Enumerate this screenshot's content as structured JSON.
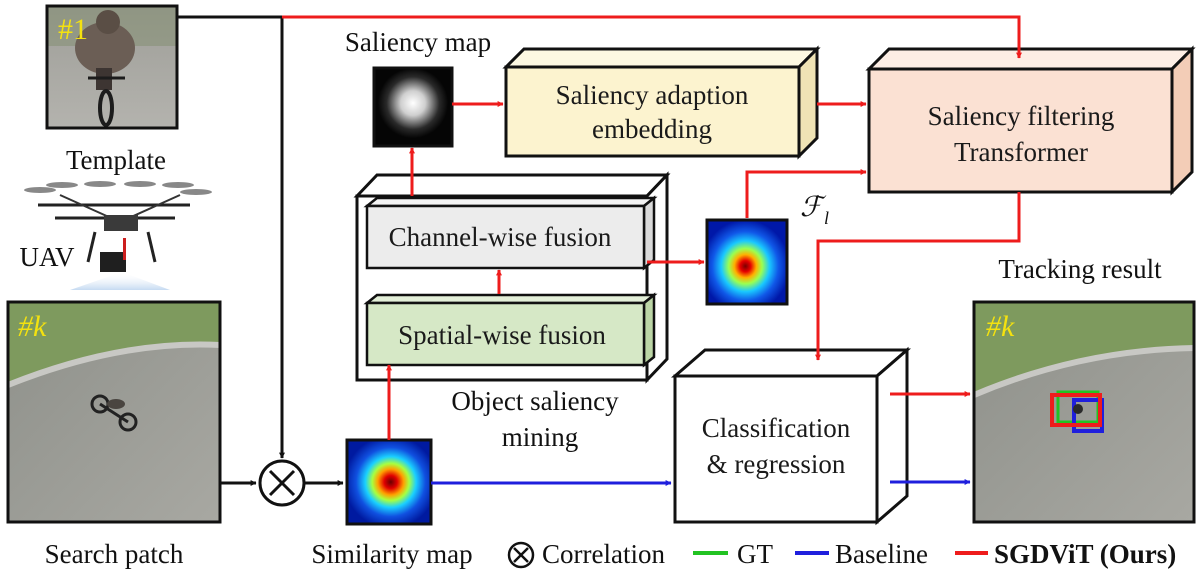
{
  "colors": {
    "red": "#ee1c1c",
    "blue": "#1f1fdd",
    "green": "#22c322",
    "black": "#111111",
    "yellow_box": "#fcf3cf",
    "pink_box": "#fbe1d3",
    "gray_box": "#ececec",
    "green_box": "#d6e8c6",
    "frame_tag": "#f4e20f"
  },
  "labels": {
    "template": "Template",
    "uav": "UAV",
    "search_patch": "Search patch",
    "saliency_map": "Saliency map",
    "similarity_map": "Similarity map",
    "tracking_result": "Tracking result",
    "object_saliency_line1": "Object saliency",
    "object_saliency_line2": "mining",
    "feature_symbol_main": "ℱ",
    "feature_symbol_sub": "l"
  },
  "frame_tags": {
    "template": "#1",
    "search": "#k",
    "result": "#k"
  },
  "modules": {
    "saliency_adaption": [
      "Saliency adaption",
      "embedding"
    ],
    "saliency_filtering": [
      "Saliency filtering",
      "Transformer"
    ],
    "channel_fusion": "Channel-wise fusion",
    "spatial_fusion": "Spatial-wise fusion",
    "classification": [
      "Classification",
      "& regression"
    ]
  },
  "legend": {
    "correlation": "Correlation",
    "gt": "GT",
    "baseline": "Baseline",
    "ours": "SGDViT (Ours)"
  }
}
